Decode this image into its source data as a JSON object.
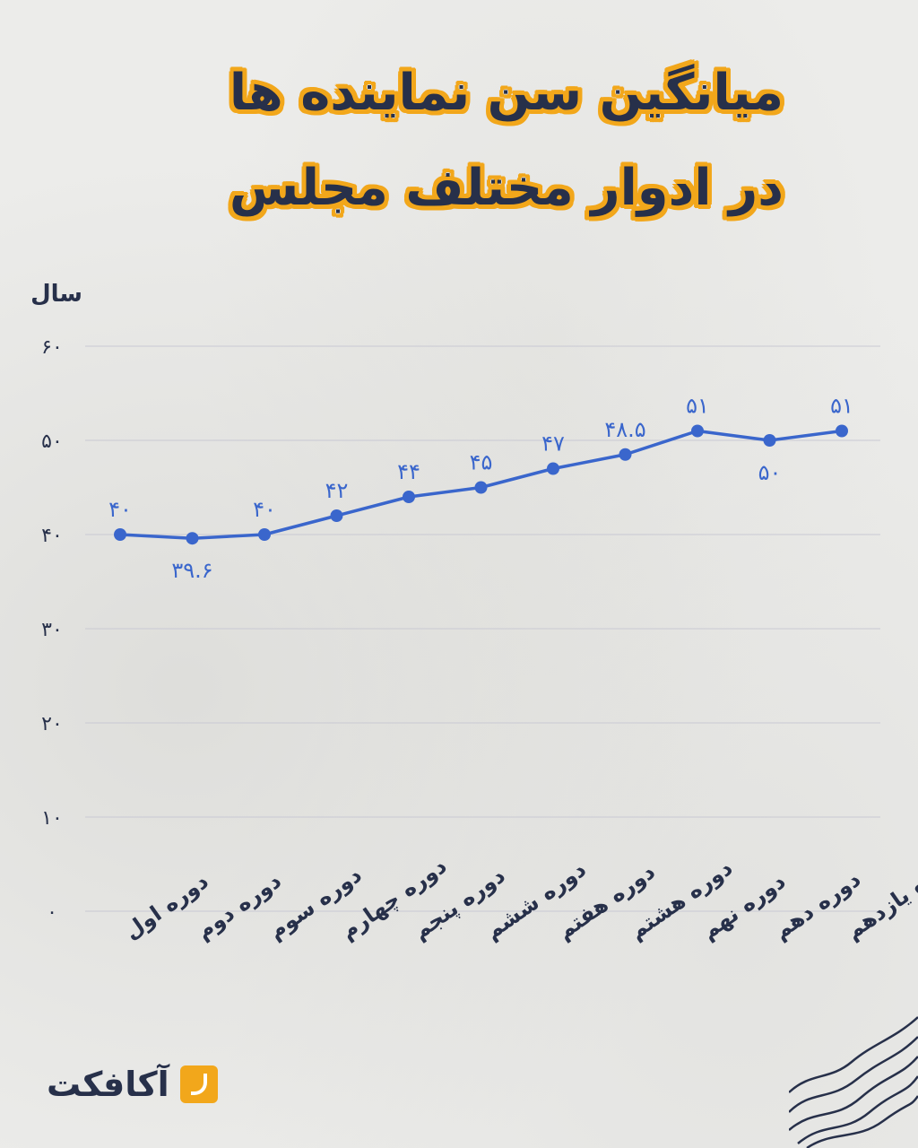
{
  "title": {
    "line1": "میانگین سن نماینده ها",
    "line2": "در ادوار مختلف مجلس"
  },
  "brand": {
    "name": "آکافکت",
    "logo_icon": "brand-logo-icon",
    "accent_color": "#f2a71b"
  },
  "colors": {
    "line": "#3a66cc",
    "text": "#27304a",
    "grid": "#c9c9d3"
  },
  "chart_data": {
    "type": "line",
    "ylabel": "سال",
    "ylim": [
      0,
      60
    ],
    "yticks": [
      0,
      10,
      20,
      30,
      40,
      50,
      60
    ],
    "ytick_labels": [
      "۰",
      "۱۰",
      "۲۰",
      "۳۰",
      "۴۰",
      "۵۰",
      "۶۰"
    ],
    "grid": true,
    "categories": [
      "دوره اول",
      "دوره دوم",
      "دوره سوم",
      "دوره چهارم",
      "دوره پنجم",
      "دوره ششم",
      "دوره هفتم",
      "دوره هشتم",
      "دوره نهم",
      "دوره دهم",
      "دوره یازدهم"
    ],
    "values": [
      40,
      39.6,
      40,
      42,
      44,
      45,
      47,
      48.5,
      51,
      50,
      51
    ],
    "value_labels": [
      "۴۰",
      "۳۹.۶",
      "۴۰",
      "۴۲",
      "۴۴",
      "۴۵",
      "۴۷",
      "۴۸.۵",
      "۵۱",
      "۵۰",
      "۵۱"
    ]
  }
}
